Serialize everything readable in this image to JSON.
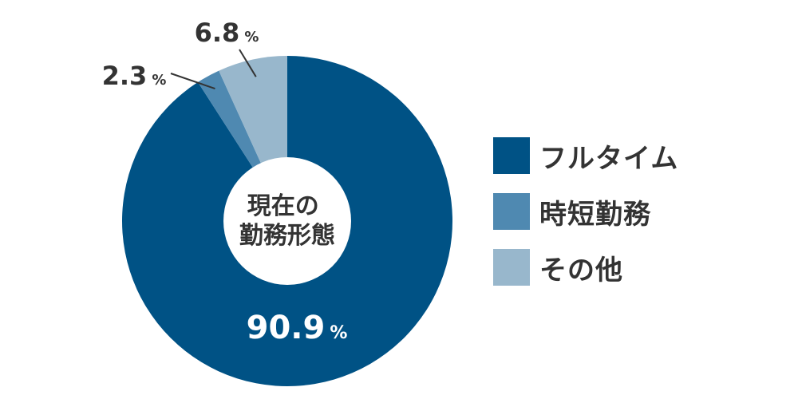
{
  "chart_data": {
    "type": "pie",
    "title": "",
    "center_label": [
      "現在の",
      "勤務形態"
    ],
    "unit": "%",
    "categories": [
      "フルタイム",
      "時短勤務",
      "その他"
    ],
    "values": [
      90.9,
      2.3,
      6.8
    ],
    "value_labels": [
      "90.9",
      "2.3",
      "6.8"
    ],
    "colors": [
      "#005285",
      "#4f89b1",
      "#98b7cc"
    ],
    "legend_position": "right"
  }
}
